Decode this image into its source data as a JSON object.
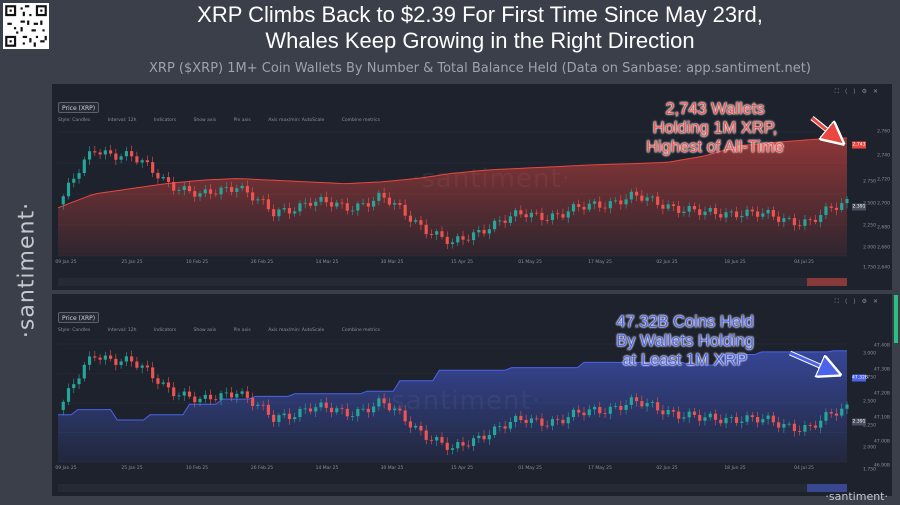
{
  "header": {
    "title_line1": "XRP Climbs Back to $2.39 For First Time Since May 23rd,",
    "title_line2": "Whales Keep Growing in the Right Direction",
    "subtitle": "XRP ($XRP) 1M+ Coin Wallets By Number & Total Balance Held (Data on Sanbase: app.santiment.net)"
  },
  "brand": {
    "side": "·santiment·",
    "footer": "·santiment·",
    "watermark": "·santiment·"
  },
  "toolbar": {
    "price_pill": "Price (XRP)",
    "items": [
      "Style: Candles",
      "Interval: 12h",
      "Indicators",
      "Show axis",
      "Pin axis",
      "Axis max/min: AutoScale",
      "Combine metrics"
    ]
  },
  "colors": {
    "up": "#26a69a",
    "down": "#ef5350",
    "wallets": "#e9473f",
    "holdings": "#4a63ea",
    "panel_bg": "#1e222d"
  },
  "x_dates": [
    "09 Jan 25",
    "25 Jan 25",
    "10 Feb 25",
    "26 Feb 25",
    "14 Mar 25",
    "30 Mar 25",
    "15 Apr 25",
    "01 May 25",
    "17 May 25",
    "02 Jun 25",
    "18 Jun 25",
    "04 Jul 25"
  ],
  "annotations": {
    "wallets_lines": [
      "2,743 Wallets",
      "Holding 1M XRP,",
      "Highest of All-Time"
    ],
    "holdings_lines": [
      "47.32B Coins Held",
      "By Wallets Holding",
      "at Least 1M XRP"
    ]
  },
  "chart_data": [
    {
      "type": "line",
      "title": "",
      "series": [
        {
          "name": "Price (XRP)",
          "x": [
            "2025-01-09",
            "2025-01-17",
            "2025-01-25",
            "2025-02-02",
            "2025-02-10",
            "2025-02-18",
            "2025-02-26",
            "2025-03-06",
            "2025-03-14",
            "2025-03-22",
            "2025-03-30",
            "2025-04-07",
            "2025-04-15",
            "2025-04-23",
            "2025-05-01",
            "2025-05-09",
            "2025-05-17",
            "2025-05-25",
            "2025-06-02",
            "2025-06-10",
            "2025-06-18",
            "2025-06-26",
            "2025-07-04"
          ],
          "values": [
            2.35,
            3.15,
            3.05,
            2.7,
            2.45,
            2.65,
            2.2,
            2.4,
            2.3,
            2.45,
            2.1,
            1.75,
            2.05,
            2.2,
            2.2,
            2.35,
            2.45,
            2.35,
            2.2,
            2.25,
            2.15,
            2.1,
            2.39
          ]
        },
        {
          "name": "1M+ Coin Wallets",
          "x": [
            "2025-01-09",
            "2025-01-17",
            "2025-01-25",
            "2025-02-02",
            "2025-02-10",
            "2025-02-18",
            "2025-02-26",
            "2025-03-06",
            "2025-03-14",
            "2025-03-22",
            "2025-03-30",
            "2025-04-07",
            "2025-04-15",
            "2025-04-23",
            "2025-05-01",
            "2025-05-09",
            "2025-05-17",
            "2025-05-25",
            "2025-06-02",
            "2025-06-10",
            "2025-06-18",
            "2025-06-26",
            "2025-07-04"
          ],
          "values": [
            2540,
            2580,
            2595,
            2610,
            2620,
            2625,
            2620,
            2615,
            2610,
            2615,
            2625,
            2640,
            2650,
            2655,
            2660,
            2665,
            2668,
            2672,
            2690,
            2720,
            2730,
            2738,
            2743
          ]
        }
      ]
    },
    {
      "type": "line",
      "title": "",
      "series": [
        {
          "name": "Price (XRP)",
          "x": [
            "2025-01-09",
            "2025-01-17",
            "2025-01-25",
            "2025-02-02",
            "2025-02-10",
            "2025-02-18",
            "2025-02-26",
            "2025-03-06",
            "2025-03-14",
            "2025-03-22",
            "2025-03-30",
            "2025-04-07",
            "2025-04-15",
            "2025-04-23",
            "2025-05-01",
            "2025-05-09",
            "2025-05-17",
            "2025-05-25",
            "2025-06-02",
            "2025-06-10",
            "2025-06-18",
            "2025-06-26",
            "2025-07-04"
          ],
          "values": [
            2.35,
            3.15,
            3.05,
            2.7,
            2.45,
            2.65,
            2.2,
            2.4,
            2.3,
            2.45,
            2.1,
            1.75,
            2.05,
            2.2,
            2.2,
            2.35,
            2.45,
            2.35,
            2.2,
            2.25,
            2.15,
            2.1,
            2.39
          ]
        },
        {
          "name": "Coins Held by 1M+ Wallets",
          "x": [
            "2025-01-09",
            "2025-01-17",
            "2025-01-25",
            "2025-02-02",
            "2025-02-10",
            "2025-02-18",
            "2025-02-26",
            "2025-03-06",
            "2025-03-14",
            "2025-03-22",
            "2025-03-30",
            "2025-04-07",
            "2025-04-15",
            "2025-04-23",
            "2025-05-01",
            "2025-05-09",
            "2025-05-17",
            "2025-05-25",
            "2025-06-02",
            "2025-06-10",
            "2025-06-18",
            "2025-06-26",
            "2025-07-04"
          ],
          "values": [
            46.1,
            46.2,
            46.0,
            46.1,
            46.3,
            46.4,
            46.45,
            46.5,
            46.5,
            46.55,
            46.75,
            46.95,
            46.95,
            47.0,
            47.0,
            47.1,
            47.1,
            47.1,
            47.05,
            47.25,
            47.3,
            47.3,
            47.32
          ]
        }
      ]
    }
  ],
  "panel1": {
    "y_left": [
      "2.750",
      "2.500",
      "2.250",
      "2.000",
      "1.750"
    ],
    "y_right": [
      "2,760",
      "2,740",
      "2,720",
      "2,700",
      "2,680",
      "2,660",
      "2,640"
    ],
    "price_marker": "2.391",
    "metric_marker": "2,743"
  },
  "panel2": {
    "y_left": [
      "3.000",
      "2.750",
      "2.500",
      "2.250",
      "2.000",
      "1.750"
    ],
    "y_right": [
      "47.40B",
      "47.30B",
      "47.20B",
      "47.10B",
      "47.00B",
      "46.90B"
    ],
    "price_marker": "2.391",
    "metric_marker": "47.32B"
  }
}
